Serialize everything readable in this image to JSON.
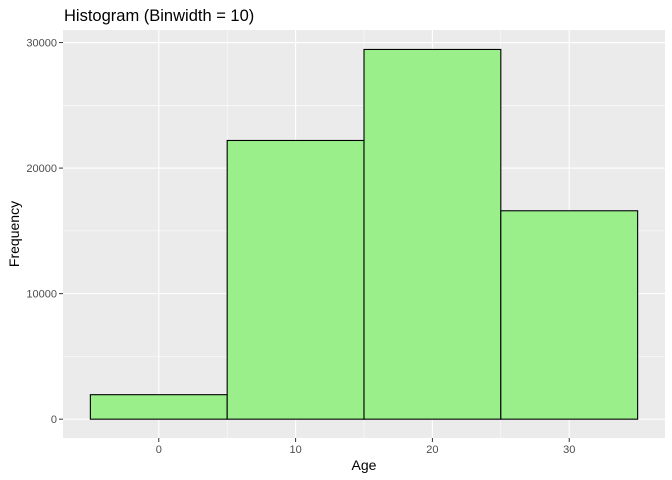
{
  "chart_data": {
    "type": "bar",
    "title": "Histogram (Binwidth = 10)",
    "xlabel": "Age",
    "ylabel": "Frequency",
    "binwidth": 10,
    "bins": [
      {
        "x0": -5,
        "x1": 5,
        "value": 1950
      },
      {
        "x0": 5,
        "x1": 15,
        "value": 22200
      },
      {
        "x0": 15,
        "x1": 25,
        "value": 29450
      },
      {
        "x0": 25,
        "x1": 35,
        "value": 16600
      }
    ],
    "xlim": [
      -7,
      37
    ],
    "ylim": [
      -1500,
      31000
    ],
    "xticks": [
      0,
      10,
      20,
      30
    ],
    "xtick_labels": [
      "0",
      "10",
      "20",
      "30"
    ],
    "yticks": [
      0,
      10000,
      20000,
      30000
    ],
    "ytick_labels": [
      "0",
      "10000",
      "20000",
      "30000"
    ],
    "grid": true,
    "legend": "none",
    "colors": {
      "panel_background": "#ebebeb",
      "grid_major": "#ffffff",
      "bar_fill": "#9aef8b",
      "bar_outline": "#000000",
      "tick_label": "#4d4d4d",
      "tick_mark": "#333333"
    }
  }
}
